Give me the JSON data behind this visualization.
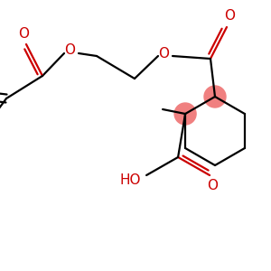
{
  "background_color": "#ffffff",
  "bond_color": "#000000",
  "heteroatom_color": "#cc0000",
  "highlight_color": "#f08080",
  "figsize": [
    3.0,
    3.0
  ],
  "dpi": 100,
  "xlim": [
    0,
    300
  ],
  "ylim": [
    0,
    300
  ]
}
